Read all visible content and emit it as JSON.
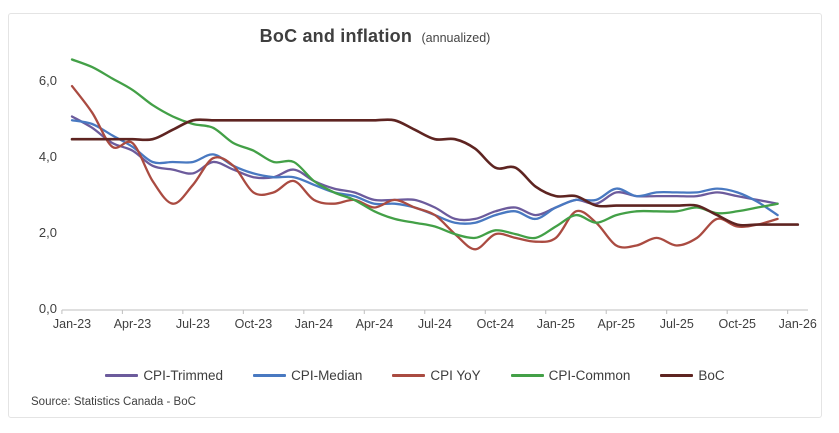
{
  "chart": {
    "title": "BoC and inflation",
    "title_suffix": "(annualized)",
    "source": "Source: Statistics Canada - BoC"
  },
  "chart_data": {
    "type": "line",
    "title": "BoC and inflation (annualized)",
    "xlabel": "",
    "ylabel": "",
    "grid": false,
    "legend_position": "bottom",
    "ylim": [
      0,
      7.2
    ],
    "y_ticks": [
      0,
      2,
      4,
      6
    ],
    "y_tick_labels": [
      "0,0",
      "2,0",
      "4,0",
      "6,0"
    ],
    "x_tick_labels": [
      "Jan-23",
      "Apr-23",
      "Jul-23",
      "Oct-23",
      "Jan-24",
      "Apr-24",
      "Jul-24",
      "Oct-24",
      "Jan-25",
      "Apr-25",
      "Jul-25",
      "Oct-25",
      "Jan-26"
    ],
    "x_months": [
      "Jan-23",
      "Feb-23",
      "Mar-23",
      "Apr-23",
      "May-23",
      "Jun-23",
      "Jul-23",
      "Aug-23",
      "Sep-23",
      "Oct-23",
      "Nov-23",
      "Dec-23",
      "Jan-24",
      "Feb-24",
      "Mar-24",
      "Apr-24",
      "May-24",
      "Jun-24",
      "Jul-24",
      "Aug-24",
      "Sep-24",
      "Oct-24",
      "Nov-24",
      "Dec-24",
      "Jan-25",
      "Feb-25",
      "Mar-25",
      "Apr-25",
      "May-25",
      "Jun-25",
      "Jul-25",
      "Aug-25",
      "Sep-25",
      "Oct-25",
      "Nov-25",
      "Dec-25",
      "Jan-26"
    ],
    "series": [
      {
        "name": "CPI-Trimmed",
        "color": "#6C5B9C",
        "stroke_width": 2.3,
        "values": [
          5.1,
          4.8,
          4.4,
          4.2,
          3.8,
          3.7,
          3.6,
          3.9,
          3.7,
          3.5,
          3.5,
          3.7,
          3.4,
          3.2,
          3.1,
          2.9,
          2.9,
          2.9,
          2.7,
          2.4,
          2.4,
          2.6,
          2.7,
          2.5,
          2.7,
          2.9,
          2.8,
          3.1,
          3.0,
          3.0,
          3.0,
          3.0,
          3.1,
          3.0,
          2.9,
          2.8
        ]
      },
      {
        "name": "CPI-Median",
        "color": "#4979C1",
        "stroke_width": 2.3,
        "values": [
          5.0,
          4.9,
          4.6,
          4.3,
          3.9,
          3.9,
          3.9,
          4.1,
          3.8,
          3.6,
          3.5,
          3.5,
          3.3,
          3.1,
          3.0,
          2.8,
          2.8,
          2.7,
          2.5,
          2.3,
          2.3,
          2.5,
          2.6,
          2.4,
          2.7,
          2.9,
          2.9,
          3.2,
          3.0,
          3.1,
          3.1,
          3.1,
          3.2,
          3.1,
          2.85,
          2.5
        ]
      },
      {
        "name": "CPI YoY",
        "color": "#AA4B41",
        "stroke_width": 2.3,
        "values": [
          5.9,
          5.2,
          4.3,
          4.4,
          3.4,
          2.8,
          3.3,
          4.0,
          3.8,
          3.1,
          3.1,
          3.4,
          2.9,
          2.8,
          2.9,
          2.7,
          2.9,
          2.7,
          2.5,
          2.0,
          1.6,
          2.0,
          1.9,
          1.8,
          1.9,
          2.6,
          2.3,
          1.7,
          1.7,
          1.9,
          1.7,
          1.9,
          2.4,
          2.2,
          2.25,
          2.4
        ]
      },
      {
        "name": "CPI-Common",
        "color": "#43A047",
        "stroke_width": 2.3,
        "values": [
          6.6,
          6.4,
          6.1,
          5.8,
          5.4,
          5.1,
          4.9,
          4.8,
          4.4,
          4.2,
          3.9,
          3.9,
          3.4,
          3.1,
          2.9,
          2.6,
          2.4,
          2.3,
          2.2,
          2.0,
          1.9,
          2.1,
          2.0,
          1.9,
          2.2,
          2.5,
          2.3,
          2.5,
          2.6,
          2.6,
          2.6,
          2.7,
          2.55,
          2.6,
          2.7,
          2.8
        ]
      },
      {
        "name": "BoC",
        "color": "#5E2421",
        "stroke_width": 2.6,
        "values": [
          4.5,
          4.5,
          4.5,
          4.5,
          4.5,
          4.75,
          5.0,
          5.0,
          5.0,
          5.0,
          5.0,
          5.0,
          5.0,
          5.0,
          5.0,
          5.0,
          5.0,
          4.75,
          4.5,
          4.5,
          4.25,
          3.75,
          3.75,
          3.25,
          3.0,
          3.0,
          2.75,
          2.75,
          2.75,
          2.75,
          2.75,
          2.75,
          2.5,
          2.25,
          2.25,
          2.25,
          2.25
        ]
      }
    ],
    "axis_color": "#bfbfbf",
    "text_color": "#404040"
  }
}
